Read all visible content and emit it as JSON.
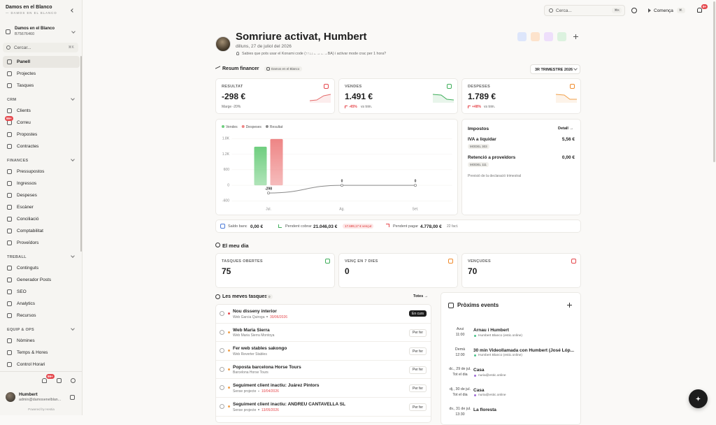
{
  "sidebar": {
    "workspace": {
      "name": "Damos en el Blanco",
      "tagline": "— DAMOS EN EL BLANCO"
    },
    "account": {
      "name": "Damos en el Blanco",
      "id": "B75676460"
    },
    "search": {
      "placeholder": "Cercar...",
      "shortcut": "⌘K"
    },
    "top_items": [
      "Panell",
      "Projectes",
      "Tasques"
    ],
    "sections": [
      {
        "title": "CRM",
        "items": [
          {
            "label": "Clients"
          },
          {
            "label": "Correu",
            "badge": "99+"
          },
          {
            "label": "Propostes"
          },
          {
            "label": "Contractes"
          }
        ]
      },
      {
        "title": "FINANCES",
        "items": [
          {
            "label": "Pressupostos"
          },
          {
            "label": "Ingressos"
          },
          {
            "label": "Despeses"
          },
          {
            "label": "Escàner"
          },
          {
            "label": "Conciliació"
          },
          {
            "label": "Comptabilitat"
          },
          {
            "label": "Proveïdors"
          }
        ]
      },
      {
        "title": "TREBALL",
        "items": [
          {
            "label": "Continguts"
          },
          {
            "label": "Generador Posts"
          },
          {
            "label": "SEO"
          },
          {
            "label": "Analytics"
          },
          {
            "label": "Recursos"
          }
        ]
      },
      {
        "title": "EQUIP & OPS",
        "items": [
          {
            "label": "Nòmines"
          },
          {
            "label": "Temps & Hores"
          },
          {
            "label": "Control Horari"
          }
        ]
      }
    ],
    "notifications": "99+",
    "user": {
      "name": "Humbert",
      "email": "admin@damosenelblan..."
    },
    "powered": "Powered by Hestia"
  },
  "topbar": {
    "search": "Cerca...",
    "search_shortcut": "⌘K",
    "start": "Comença",
    "start_shortcut": "⌘.",
    "notifications": "9+"
  },
  "header": {
    "title": "Somriure activat, Humbert",
    "date": "dilluns, 27 de juliol del 2026",
    "tip": "Sabies que pots usar el Konami code (↑↑↓↓←→←→BA) i activar mode crac per 1 hora?"
  },
  "summary": {
    "title": "Resum financer",
    "company": "Damos en el Blanco",
    "period": "3R TRIMESTRE 2026",
    "cards": [
      {
        "label": "RESULTAT",
        "value": "-298 €",
        "note": "Marge -20%"
      },
      {
        "label": "VENDES",
        "value": "1.491 €",
        "change": "-45%",
        "note": "vs trim."
      },
      {
        "label": "DESPESES",
        "value": "1.789 €",
        "change": "+48%",
        "note": "vs trim."
      }
    ]
  },
  "chart_data": {
    "type": "bar",
    "categories": [
      "Jul.",
      "Ag.",
      "Set."
    ],
    "series": [
      {
        "name": "Vendes",
        "color": "#6fce7f",
        "values": [
          1491,
          0,
          0
        ]
      },
      {
        "name": "Despeses",
        "color": "#ee8585",
        "values": [
          1789,
          0,
          0
        ]
      },
      {
        "name": "Resultat",
        "type": "line",
        "color": "#8a8a8a",
        "values": [
          -298,
          0,
          0
        ]
      }
    ],
    "ylim": [
      -700,
      2000
    ],
    "yticks": [
      {
        "value": 1800,
        "label": "1.8K"
      },
      {
        "value": 1200,
        "label": "1.2K"
      },
      600,
      0,
      -600
    ],
    "grid": true
  },
  "taxes": {
    "title": "Impostos",
    "link": "Detall →",
    "rows": [
      {
        "label": "IVA a liquidar",
        "model": "MODEL 303",
        "value": "5,56 €"
      },
      {
        "label": "Retenció a proveïdors",
        "model": "MODEL 111",
        "value": "0,00 €"
      }
    ],
    "note": "Previsió de la declaració trimestral"
  },
  "bank": {
    "balance_label": "Saldo banc",
    "balance": "0,00 €",
    "receivable_label": "Pendent cobrar",
    "receivable": "21.046,03 €",
    "overdue": "17.699,17 € vençut",
    "payable_label": "Pendent pagar",
    "payable": "4.778,00 €",
    "payable_count": "22 fact."
  },
  "my_day": {
    "title": "El meu dia",
    "cards": [
      {
        "label": "TASQUES OBERTES",
        "value": 75
      },
      {
        "label": "VENÇ EN 7 DIES",
        "value": 0
      },
      {
        "label": "VENÇUDES",
        "value": 70
      }
    ]
  },
  "tasks": {
    "title": "Les meves tasques",
    "count": 0,
    "link": "Totes →",
    "items": [
      {
        "title": "Nou disseny interior",
        "project": "Web Garcia Quiroga",
        "date": "30/06/2026",
        "status": "En curs"
      },
      {
        "title": "Web Maria Sierra",
        "project": "Web Maria Sierra Montoya",
        "status": "Per fer"
      },
      {
        "title": "Fer web stables sakongo",
        "project": "Web Reverter Stables",
        "status": "Per fer"
      },
      {
        "title": "Poposta barcelona Horse Tours",
        "project": "Barcelona Horse Tours",
        "status": "Per fer"
      },
      {
        "title": "Seguiment client inactiu: Juárez Pintors",
        "project": "Sense projecte",
        "date": "10/04/2026",
        "status": "Per fer"
      },
      {
        "title": "Seguiment client inactiu: ANDREU CANTAVELLA SL",
        "project": "Sense projecte",
        "date": "13/05/2026",
        "status": "Per fer"
      }
    ]
  },
  "events": {
    "title": "Pròxims events",
    "items": [
      {
        "day": "Avui",
        "time": "11:00",
        "title": "Arnau i Humbert",
        "calendar": "Humbert Blanco (estic.online)",
        "color": "#4cc38a"
      },
      {
        "day": "Demà",
        "time": "12:00",
        "title": "30 min Videollamada con Humbert (José Lóp...",
        "calendar": "Humbert Blanco (estic.online)",
        "color": "#4cc38a"
      },
      {
        "day": "dc., 29 de jul.",
        "time": "Tot el dia",
        "title": "Casa",
        "calendar": "nuria@estic.online",
        "color": "#a06cd5"
      },
      {
        "day": "dj., 30 de jul.",
        "time": "Tot el dia",
        "title": "Casa",
        "calendar": "nuria@estic.online",
        "color": "#a06cd5"
      },
      {
        "day": "dv., 31 de jul.",
        "time": "13:30",
        "title": "La floresta"
      }
    ]
  }
}
